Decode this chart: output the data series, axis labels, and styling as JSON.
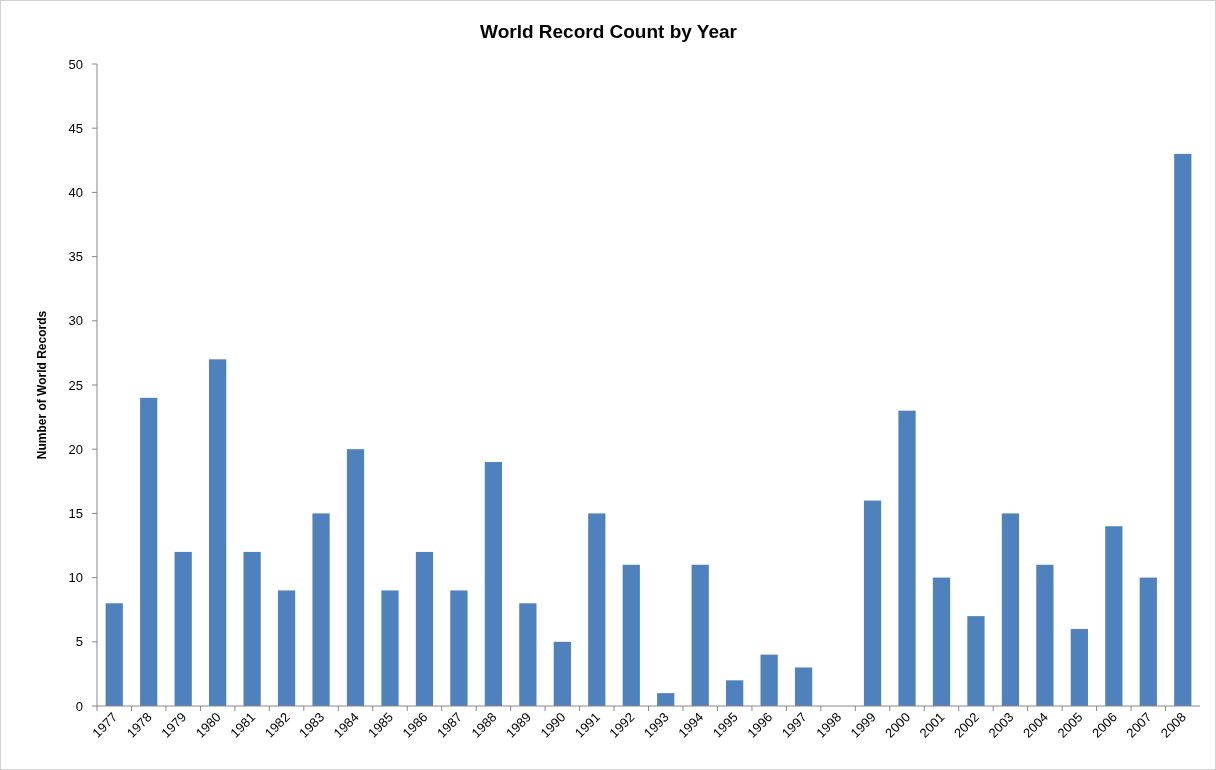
{
  "chart_data": {
    "type": "bar",
    "title": "World Record Count by Year",
    "ylabel": "Number of World Records",
    "categories": [
      "1977",
      "1978",
      "1979",
      "1980",
      "1981",
      "1982",
      "1983",
      "1984",
      "1985",
      "1986",
      "1987",
      "1988",
      "1989",
      "1990",
      "1991",
      "1992",
      "1993",
      "1994",
      "1995",
      "1996",
      "1997",
      "1998",
      "1999",
      "2000",
      "2001",
      "2002",
      "2003",
      "2004",
      "2005",
      "2006",
      "2007",
      "2008"
    ],
    "values": [
      8,
      24,
      12,
      27,
      12,
      9,
      15,
      20,
      9,
      12,
      9,
      19,
      8,
      5,
      15,
      11,
      1,
      11,
      2,
      4,
      3,
      0,
      16,
      23,
      10,
      7,
      15,
      11,
      6,
      14,
      10,
      43
    ],
    "color": "#4f81bd",
    "ylim": [
      0,
      50
    ],
    "yticks": [
      0,
      5,
      10,
      15,
      20,
      25,
      30,
      35,
      40,
      45,
      50
    ],
    "grid": false
  }
}
